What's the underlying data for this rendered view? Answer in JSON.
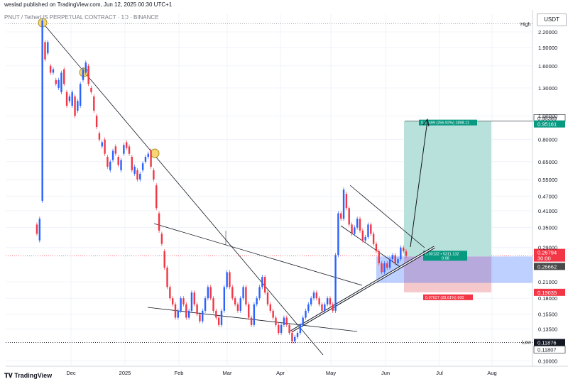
{
  "header": {
    "published": "weslad published on TradingView.com, Jun 12, 2025 00:30 UTC+1",
    "symbol_line": "PNUT / TetherUS PERPETUAL CONTRACT · 1D · BINANCE",
    "currency": "USDT"
  },
  "logo_text": "TradingView",
  "chart_data": {
    "type": "candlestick",
    "title": "PNUT / TetherUS PERPETUAL CONTRACT · 1D · BINANCE",
    "yscale": "log",
    "ylim": [
      0.095,
      2.6
    ],
    "y_ticks": [
      "2.20000",
      "1.90000",
      "1.60000",
      "1.30000",
      "1.00000",
      "0.80000",
      "0.65000",
      "0.55000",
      "0.47000",
      "0.41000",
      "0.35000",
      "0.29000",
      "0.21000",
      "0.18000",
      "0.15500",
      "0.13500",
      "0.10000"
    ],
    "x_ticks": [
      "Dec",
      "2025",
      "Feb",
      "Mar",
      "Apr",
      "May",
      "Jun",
      "Jul",
      "Aug"
    ],
    "high_label": "High",
    "low_label": "Low",
    "price_labels": [
      {
        "value": "0.95369",
        "color": "#131722",
        "bg": "#ffffff"
      },
      {
        "value": "0.95161",
        "color": "#ffffff",
        "bg": "#089981"
      },
      {
        "value": "0.26794",
        "color": "#ffffff",
        "bg": "#f23645"
      },
      {
        "value": "30:00",
        "color": "#ffffff",
        "bg": "#f23645"
      },
      {
        "value": "0.26662",
        "color": "#ffffff",
        "bg": "#4a4a4a"
      },
      {
        "value": "0.19035",
        "color": "#ffffff",
        "bg": "#f23645"
      },
      {
        "value": "0.11876",
        "color": "#ffffff",
        "bg": "#131722"
      },
      {
        "value": "0.11807",
        "color": "#131722",
        "bg": "#ffffff"
      }
    ],
    "position": {
      "target_text": "0.68499 (256.92%) 1898.11",
      "entry_text_1": "0.00132 • 5311.132",
      "entry_text_2": "0.98",
      "stop_text": "0.07627 (28.61%) 900",
      "target": 0.95161,
      "entry": 0.26662,
      "stop": 0.19035
    },
    "colors": {
      "up": "#2962ff",
      "down": "#f23645",
      "tp_fill": "#b9e1db",
      "sl_fill": "#f5c8cc"
    },
    "price_path": [
      [
        0.36,
        0.33
      ],
      [
        0.31,
        0.38
      ],
      [
        0.45,
        2.45
      ],
      [
        2.0,
        1.7
      ],
      [
        1.8,
        2.0
      ],
      [
        1.6,
        1.5
      ],
      [
        1.5,
        1.55
      ],
      [
        1.4,
        1.35
      ],
      [
        1.3,
        1.4
      ],
      [
        1.25,
        1.5
      ],
      [
        1.55,
        1.35
      ],
      [
        1.25,
        1.1
      ],
      [
        1.15,
        1.2
      ],
      [
        1.1,
        1.25
      ],
      [
        1.2,
        1.0
      ],
      [
        1.05,
        1.15
      ],
      [
        1.1,
        1.35
      ],
      [
        1.4,
        1.55
      ],
      [
        1.5,
        1.65
      ],
      [
        1.6,
        1.35
      ],
      [
        1.3,
        1.25
      ],
      [
        1.2,
        1.05
      ],
      [
        1.0,
        0.9
      ],
      [
        0.85,
        0.8
      ],
      [
        0.75,
        0.78
      ],
      [
        0.8,
        0.7
      ],
      [
        0.68,
        0.62
      ],
      [
        0.6,
        0.65
      ],
      [
        0.66,
        0.72
      ],
      [
        0.75,
        0.7
      ],
      [
        0.68,
        0.63
      ],
      [
        0.6,
        0.66
      ],
      [
        0.7,
        0.76
      ],
      [
        0.78,
        0.74
      ],
      [
        0.75,
        0.7
      ],
      [
        0.68,
        0.6
      ],
      [
        0.58,
        0.62
      ],
      [
        0.6,
        0.55
      ],
      [
        0.55,
        0.58
      ],
      [
        0.6,
        0.64
      ],
      [
        0.65,
        0.68
      ],
      [
        0.68,
        0.7
      ],
      [
        0.72,
        0.62
      ],
      [
        0.6,
        0.55
      ],
      [
        0.52,
        0.42
      ],
      [
        0.4,
        0.34
      ],
      [
        0.33,
        0.3
      ],
      [
        0.28,
        0.24
      ],
      [
        0.24,
        0.2
      ],
      [
        0.2,
        0.18
      ],
      [
        0.18,
        0.17
      ],
      [
        0.17,
        0.15
      ],
      [
        0.15,
        0.16
      ],
      [
        0.16,
        0.18
      ],
      [
        0.18,
        0.17
      ],
      [
        0.17,
        0.15
      ],
      [
        0.15,
        0.16
      ],
      [
        0.16,
        0.19
      ],
      [
        0.19,
        0.17
      ],
      [
        0.17,
        0.155
      ],
      [
        0.155,
        0.145
      ],
      [
        0.145,
        0.16
      ],
      [
        0.16,
        0.18
      ],
      [
        0.18,
        0.2
      ],
      [
        0.2,
        0.18
      ],
      [
        0.18,
        0.16
      ],
      [
        0.16,
        0.15
      ],
      [
        0.15,
        0.14
      ],
      [
        0.14,
        0.16
      ],
      [
        0.16,
        0.2
      ],
      [
        0.2,
        0.23
      ],
      [
        0.23,
        0.2
      ],
      [
        0.2,
        0.18
      ],
      [
        0.18,
        0.17
      ],
      [
        0.17,
        0.16
      ],
      [
        0.16,
        0.18
      ],
      [
        0.18,
        0.2
      ],
      [
        0.2,
        0.17
      ],
      [
        0.17,
        0.15
      ],
      [
        0.15,
        0.14
      ],
      [
        0.14,
        0.17
      ],
      [
        0.17,
        0.18
      ],
      [
        0.18,
        0.2
      ],
      [
        0.2,
        0.22
      ],
      [
        0.22,
        0.19
      ],
      [
        0.19,
        0.17
      ],
      [
        0.17,
        0.16
      ],
      [
        0.16,
        0.15
      ],
      [
        0.15,
        0.14
      ],
      [
        0.14,
        0.13
      ],
      [
        0.13,
        0.14
      ],
      [
        0.14,
        0.15
      ],
      [
        0.15,
        0.14
      ],
      [
        0.14,
        0.13
      ],
      [
        0.13,
        0.12
      ],
      [
        0.12,
        0.125
      ],
      [
        0.125,
        0.13
      ],
      [
        0.13,
        0.14
      ],
      [
        0.14,
        0.15
      ],
      [
        0.15,
        0.16
      ],
      [
        0.16,
        0.17
      ],
      [
        0.17,
        0.18
      ],
      [
        0.18,
        0.19
      ],
      [
        0.19,
        0.18
      ],
      [
        0.18,
        0.17
      ],
      [
        0.17,
        0.16
      ],
      [
        0.16,
        0.17
      ],
      [
        0.17,
        0.18
      ],
      [
        0.18,
        0.17
      ],
      [
        0.17,
        0.16
      ],
      [
        0.16,
        0.27
      ],
      [
        0.27,
        0.4
      ],
      [
        0.4,
        0.38
      ],
      [
        0.38,
        0.5
      ],
      [
        0.48,
        0.42
      ],
      [
        0.42,
        0.36
      ],
      [
        0.36,
        0.33
      ],
      [
        0.33,
        0.35
      ],
      [
        0.35,
        0.38
      ],
      [
        0.38,
        0.34
      ],
      [
        0.34,
        0.31
      ],
      [
        0.31,
        0.32
      ],
      [
        0.32,
        0.36
      ],
      [
        0.36,
        0.33
      ],
      [
        0.33,
        0.3
      ],
      [
        0.3,
        0.28
      ],
      [
        0.28,
        0.25
      ],
      [
        0.25,
        0.23
      ],
      [
        0.23,
        0.25
      ],
      [
        0.25,
        0.24
      ],
      [
        0.24,
        0.26
      ],
      [
        0.26,
        0.27
      ],
      [
        0.27,
        0.25
      ],
      [
        0.25,
        0.26
      ],
      [
        0.26,
        0.29
      ],
      [
        0.29,
        0.28
      ],
      [
        0.28,
        0.2679
      ]
    ]
  }
}
